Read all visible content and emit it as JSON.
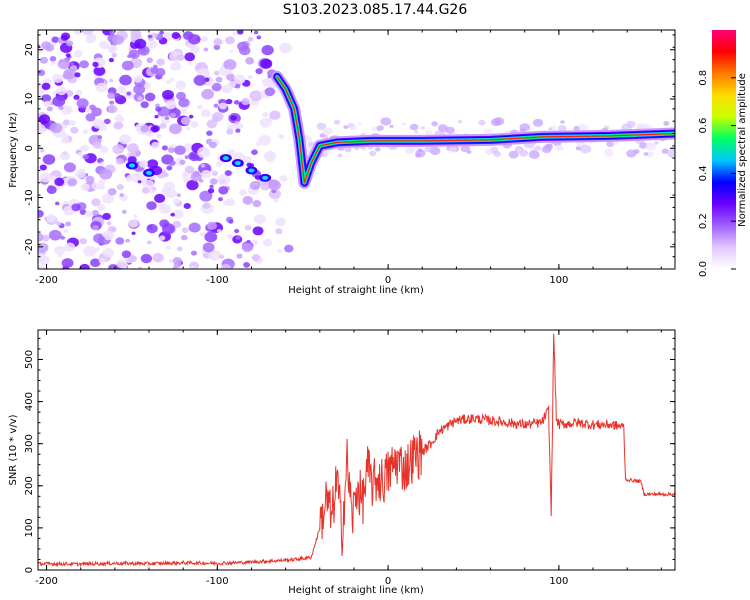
{
  "title": "S103.2023.085.17.44.G26",
  "chart_data": [
    {
      "type": "heatmap",
      "xlabel": "Height of straight line (km)",
      "ylabel": "Frequency (Hz)",
      "xlim": [
        -205,
        168
      ],
      "ylim": [
        -24.5,
        24
      ],
      "xticks": [
        -200,
        -100,
        0,
        100
      ],
      "yticks": [
        -20,
        -10,
        0,
        10,
        20
      ],
      "colorbar": {
        "label": "Normalized spectral amplitude",
        "range": [
          0,
          1
        ],
        "ticks": [
          "0.0",
          "0.2",
          "0.4",
          "0.6",
          "0.8"
        ],
        "ticks_values": [
          0,
          0.2,
          0.4,
          0.6,
          0.8
        ],
        "colormap": [
          "#ffffff",
          "#e2c6ff",
          "#a060ff",
          "#6a00ff",
          "#0000ff",
          "#00c8ff",
          "#00ff60",
          "#c8ff00",
          "#ffdc00",
          "#ff7a00",
          "#ff0000",
          "#ff007a"
        ]
      },
      "ridge": [
        {
          "x": -65,
          "y": 14.5
        },
        {
          "x": -60,
          "y": 12
        },
        {
          "x": -55,
          "y": 8
        },
        {
          "x": -52,
          "y": 2
        },
        {
          "x": -49,
          "y": -7
        },
        {
          "x": -45,
          "y": -3
        },
        {
          "x": -40,
          "y": 0.5
        },
        {
          "x": -30,
          "y": 1.2
        },
        {
          "x": -10,
          "y": 1.5
        },
        {
          "x": 20,
          "y": 1.5
        },
        {
          "x": 60,
          "y": 1.7
        },
        {
          "x": 90,
          "y": 2.3
        },
        {
          "x": 130,
          "y": 2.5
        },
        {
          "x": 168,
          "y": 3
        }
      ]
    },
    {
      "type": "line",
      "xlabel": "Height of straight line (km)",
      "ylabel": "SNR (10 * v/v)",
      "xlim": [
        -205,
        168
      ],
      "ylim": [
        0,
        570
      ],
      "xticks": [
        -200,
        -100,
        0,
        100
      ],
      "yticks": [
        0,
        100,
        200,
        300,
        400,
        500
      ],
      "series": [
        {
          "color": "#e8332a",
          "x": [
            -205,
            -180,
            -160,
            -140,
            -120,
            -100,
            -85,
            -75,
            -65,
            -55,
            -45,
            -40,
            -36,
            -33,
            -30,
            -27,
            -24,
            -21,
            -18,
            -15,
            -12,
            -9,
            -6,
            -3,
            0,
            5,
            10,
            15,
            20,
            25,
            30,
            40,
            50,
            60,
            70,
            80,
            90,
            94,
            95.5,
            97,
            98.5,
            100,
            110,
            120,
            130,
            138,
            139,
            148,
            150,
            168
          ],
          "y": [
            15,
            14,
            16,
            15,
            17,
            16,
            18,
            20,
            22,
            25,
            30,
            100,
            170,
            120,
            220,
            90,
            260,
            120,
            200,
            160,
            240,
            200,
            220,
            210,
            230,
            260,
            240,
            270,
            280,
            300,
            330,
            355,
            360,
            355,
            350,
            345,
            350,
            380,
            130,
            560,
            360,
            345,
            350,
            345,
            345,
            340,
            215,
            210,
            180,
            180
          ]
        }
      ]
    }
  ]
}
